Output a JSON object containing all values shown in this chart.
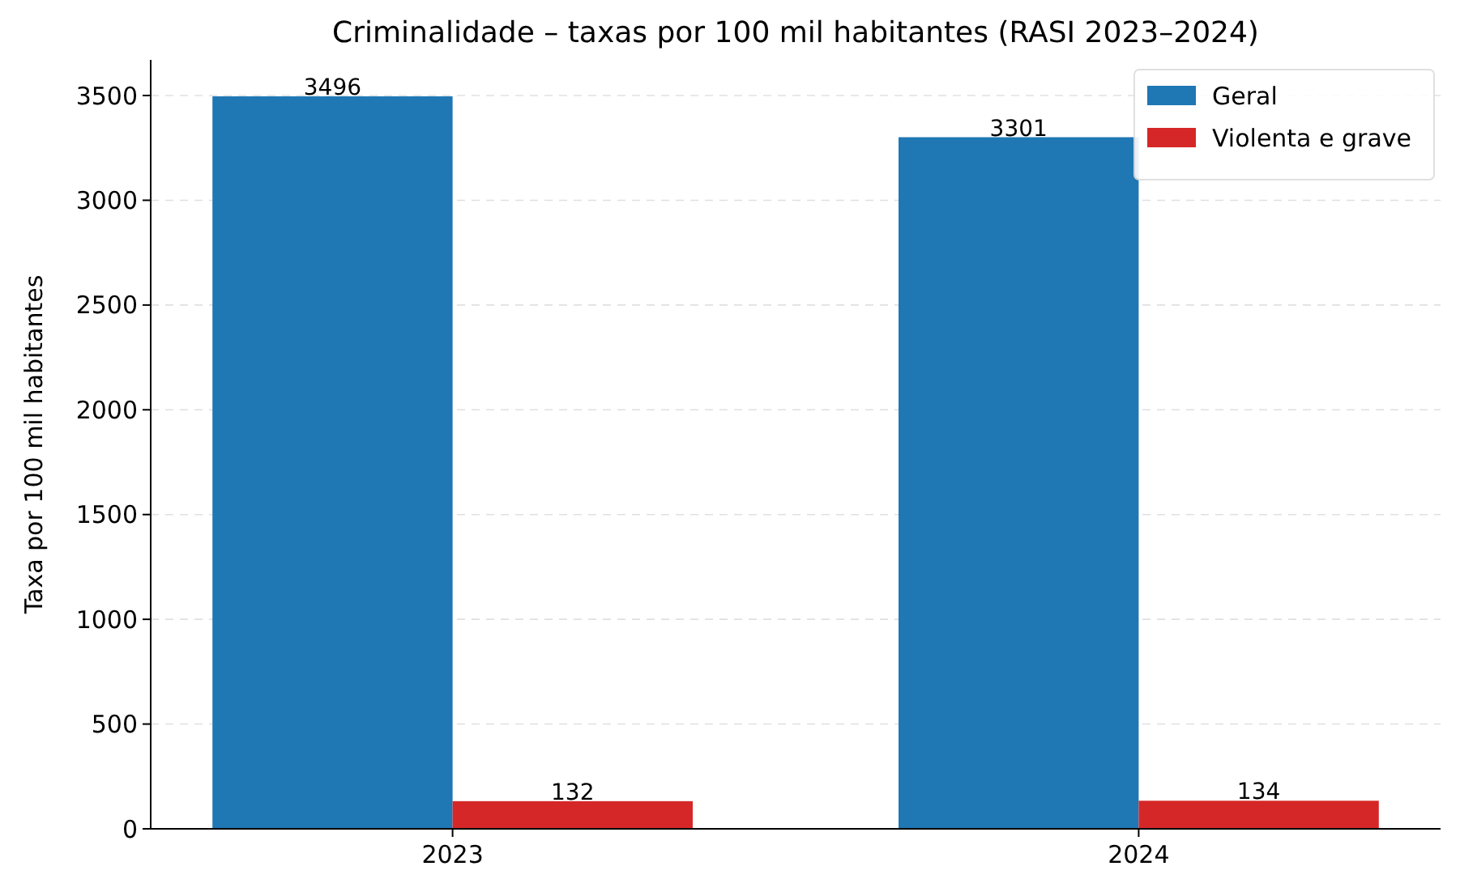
{
  "chart_data": {
    "type": "bar",
    "title": "Criminalidade – taxas por 100 mil habitantes (RASI 2023–2024)",
    "ylabel": "Taxa por 100 mil habitantes",
    "categories": [
      "2023",
      "2024"
    ],
    "series": [
      {
        "name": "Geral",
        "color": "#1f77b4",
        "values": [
          3496,
          3301
        ]
      },
      {
        "name": "Violenta e grave",
        "color": "#d62728",
        "values": [
          132,
          134
        ]
      }
    ],
    "ylim": [
      0,
      3670
    ],
    "yticks": [
      0,
      500,
      1000,
      1500,
      2000,
      2500,
      3000,
      3500
    ],
    "grid": "y",
    "legend": "top right",
    "data_labels": true
  }
}
